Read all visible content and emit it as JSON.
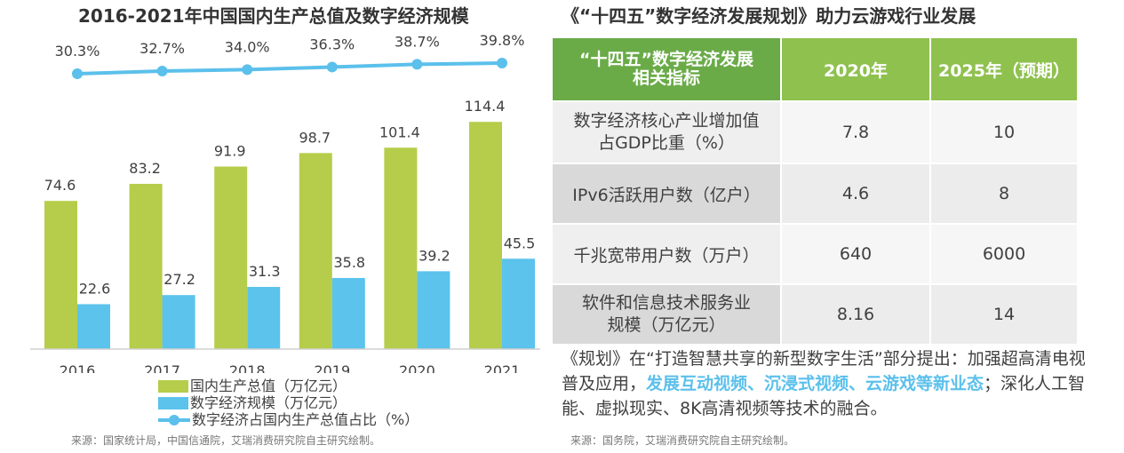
{
  "left": {
    "title": "2016-2021年中国国内生产总值及数字经济规模",
    "source": "来源：国家统计局，中国信通院，艾瑞消费研究院自主研究绘制。"
  },
  "chart_data": {
    "type": "bar",
    "title": "2016-2021年中国国内生产总值及数字经济规模",
    "categories": [
      "2016",
      "2017",
      "2018",
      "2019",
      "2020",
      "2021"
    ],
    "series": [
      {
        "name": "国内生产总值（万亿元）",
        "type": "bar",
        "color": "#b5cd4a",
        "values": [
          74.6,
          83.2,
          91.9,
          98.7,
          101.4,
          114.4
        ]
      },
      {
        "name": "数字经济规模（万亿元）",
        "type": "bar",
        "color": "#5bc3ec",
        "values": [
          22.6,
          27.2,
          31.3,
          35.8,
          39.2,
          45.5
        ]
      },
      {
        "name": "数字经济占国内生产总值占比（%）",
        "type": "line",
        "color": "#5bc0eb",
        "values": [
          30.3,
          32.7,
          34.0,
          36.3,
          38.7,
          39.8
        ],
        "labels": [
          "30.3%",
          "32.7%",
          "34.0%",
          "36.3%",
          "38.7%",
          "39.8%"
        ]
      }
    ],
    "legend": "bottom",
    "grid": false
  },
  "right": {
    "title": "《“十四五”数字经济发展规划》助力云游戏行业发展",
    "colors": {
      "header_dark": "#6aab48",
      "header_light": "#8fc14f"
    },
    "table": {
      "headers": [
        "“十四五”数字经济发展\n相关指标",
        "2020年",
        "2025年（预期）"
      ],
      "rows": [
        [
          "数字经济核心产业增加值\n占GDP比重（%）",
          "7.8",
          "10"
        ],
        [
          "IPv6活跃用户数（亿户）",
          "4.6",
          "8"
        ],
        [
          "千兆宽带用户数（万户）",
          "640",
          "6000"
        ],
        [
          "软件和信息技术服务业\n规模（万亿元）",
          "8.16",
          "14"
        ]
      ]
    },
    "note": {
      "part1": "《规划》在“打造智慧共享的新型数字生活”部分提出：加强超高清电视普及应用，",
      "highlight": "发展互动视频、沉浸式视频、云游戏等新业态",
      "part2": "；深化人工智能、虚拟现实、8K高清视频等技术的融合。"
    },
    "source": "来源：国务院，艾瑞消费研究院自主研究绘制。"
  }
}
